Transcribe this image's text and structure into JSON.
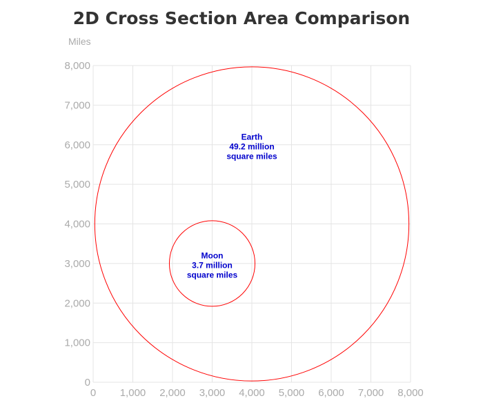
{
  "chart_data": {
    "type": "scatter",
    "title": "2D Cross Section Area Comparison",
    "xlabel": "",
    "ylabel": "Miles",
    "xlim": [
      0,
      8000
    ],
    "ylim": [
      0,
      8000
    ],
    "x_ticks": [
      "0",
      "1,000",
      "2,000",
      "3,000",
      "4,000",
      "5,000",
      "6,000",
      "7,000",
      "8,000"
    ],
    "y_ticks": [
      "0",
      "1,000",
      "2,000",
      "3,000",
      "4,000",
      "5,000",
      "6,000",
      "7,000",
      "8,000"
    ],
    "grid": true,
    "circle_color": "#ff0000",
    "label_color": "#0000cc",
    "circles": [
      {
        "name": "Earth",
        "cx": 4000,
        "cy": 4000,
        "r": 3959,
        "label": [
          "Earth",
          "49.2 million",
          "square miles"
        ],
        "label_x": 4000,
        "label_y": 5950
      },
      {
        "name": "Moon",
        "cx": 3000,
        "cy": 3000,
        "r": 1079,
        "label": [
          "Moon",
          "3.7 million",
          "square miles"
        ],
        "label_x": 3000,
        "label_y": 2950
      }
    ]
  }
}
